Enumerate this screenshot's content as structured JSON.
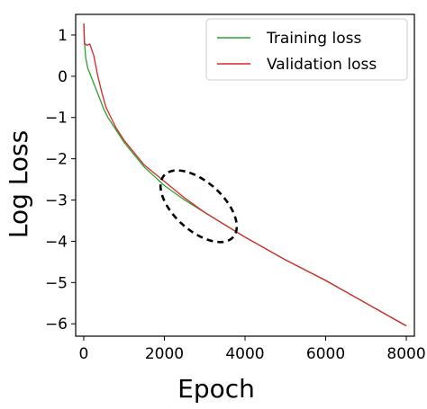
{
  "chart_data": {
    "type": "line",
    "title": "",
    "xlabel": "Epoch",
    "ylabel": "Log Loss",
    "xlim": [
      -200,
      8200
    ],
    "ylim": [
      -6.3,
      1.5
    ],
    "x_ticks": [
      0,
      2000,
      4000,
      6000,
      8000
    ],
    "x_tick_labels": [
      "0",
      "2000",
      "4000",
      "6000",
      "8000"
    ],
    "y_ticks": [
      1,
      0,
      -1,
      -2,
      -3,
      -4,
      -5,
      -6
    ],
    "y_tick_labels": [
      "1",
      "0",
      "−1",
      "−2",
      "−3",
      "−4",
      "−5",
      "−6"
    ],
    "grid": false,
    "legend_position": "top-right",
    "series": [
      {
        "name": "Training loss",
        "color": "#2ca02c",
        "points": [
          [
            0,
            1.28
          ],
          [
            20,
            0.8
          ],
          [
            50,
            0.45
          ],
          [
            100,
            0.2
          ],
          [
            200,
            -0.05
          ],
          [
            300,
            -0.3
          ],
          [
            400,
            -0.55
          ],
          [
            500,
            -0.8
          ],
          [
            600,
            -1.0
          ],
          [
            800,
            -1.3
          ],
          [
            1000,
            -1.6
          ],
          [
            1500,
            -2.2
          ],
          [
            2000,
            -2.65
          ],
          [
            2500,
            -3.0
          ],
          [
            3000,
            -3.3
          ],
          [
            3500,
            -3.6
          ],
          [
            4000,
            -3.9
          ],
          [
            5000,
            -4.45
          ],
          [
            6000,
            -4.95
          ],
          [
            7000,
            -5.5
          ],
          [
            8000,
            -6.05
          ]
        ]
      },
      {
        "name": "Validation loss",
        "color": "#d62728",
        "points": [
          [
            0,
            1.28
          ],
          [
            20,
            0.8
          ],
          [
            80,
            0.75
          ],
          [
            150,
            0.78
          ],
          [
            250,
            0.5
          ],
          [
            350,
            0.0
          ],
          [
            450,
            -0.4
          ],
          [
            550,
            -0.75
          ],
          [
            650,
            -0.95
          ],
          [
            800,
            -1.25
          ],
          [
            1000,
            -1.55
          ],
          [
            1500,
            -2.15
          ],
          [
            2000,
            -2.55
          ],
          [
            2500,
            -2.95
          ],
          [
            3000,
            -3.3
          ],
          [
            3500,
            -3.6
          ],
          [
            4000,
            -3.9
          ],
          [
            5000,
            -4.45
          ],
          [
            6000,
            -4.95
          ],
          [
            7000,
            -5.5
          ],
          [
            8000,
            -6.05
          ]
        ]
      }
    ],
    "annotations": [
      {
        "shape": "dashed-ellipse",
        "color": "#000000",
        "center": [
          2850,
          -3.15
        ],
        "semi_axes": [
          1150,
          0.95
        ],
        "rotation_deg": 42
      }
    ]
  }
}
